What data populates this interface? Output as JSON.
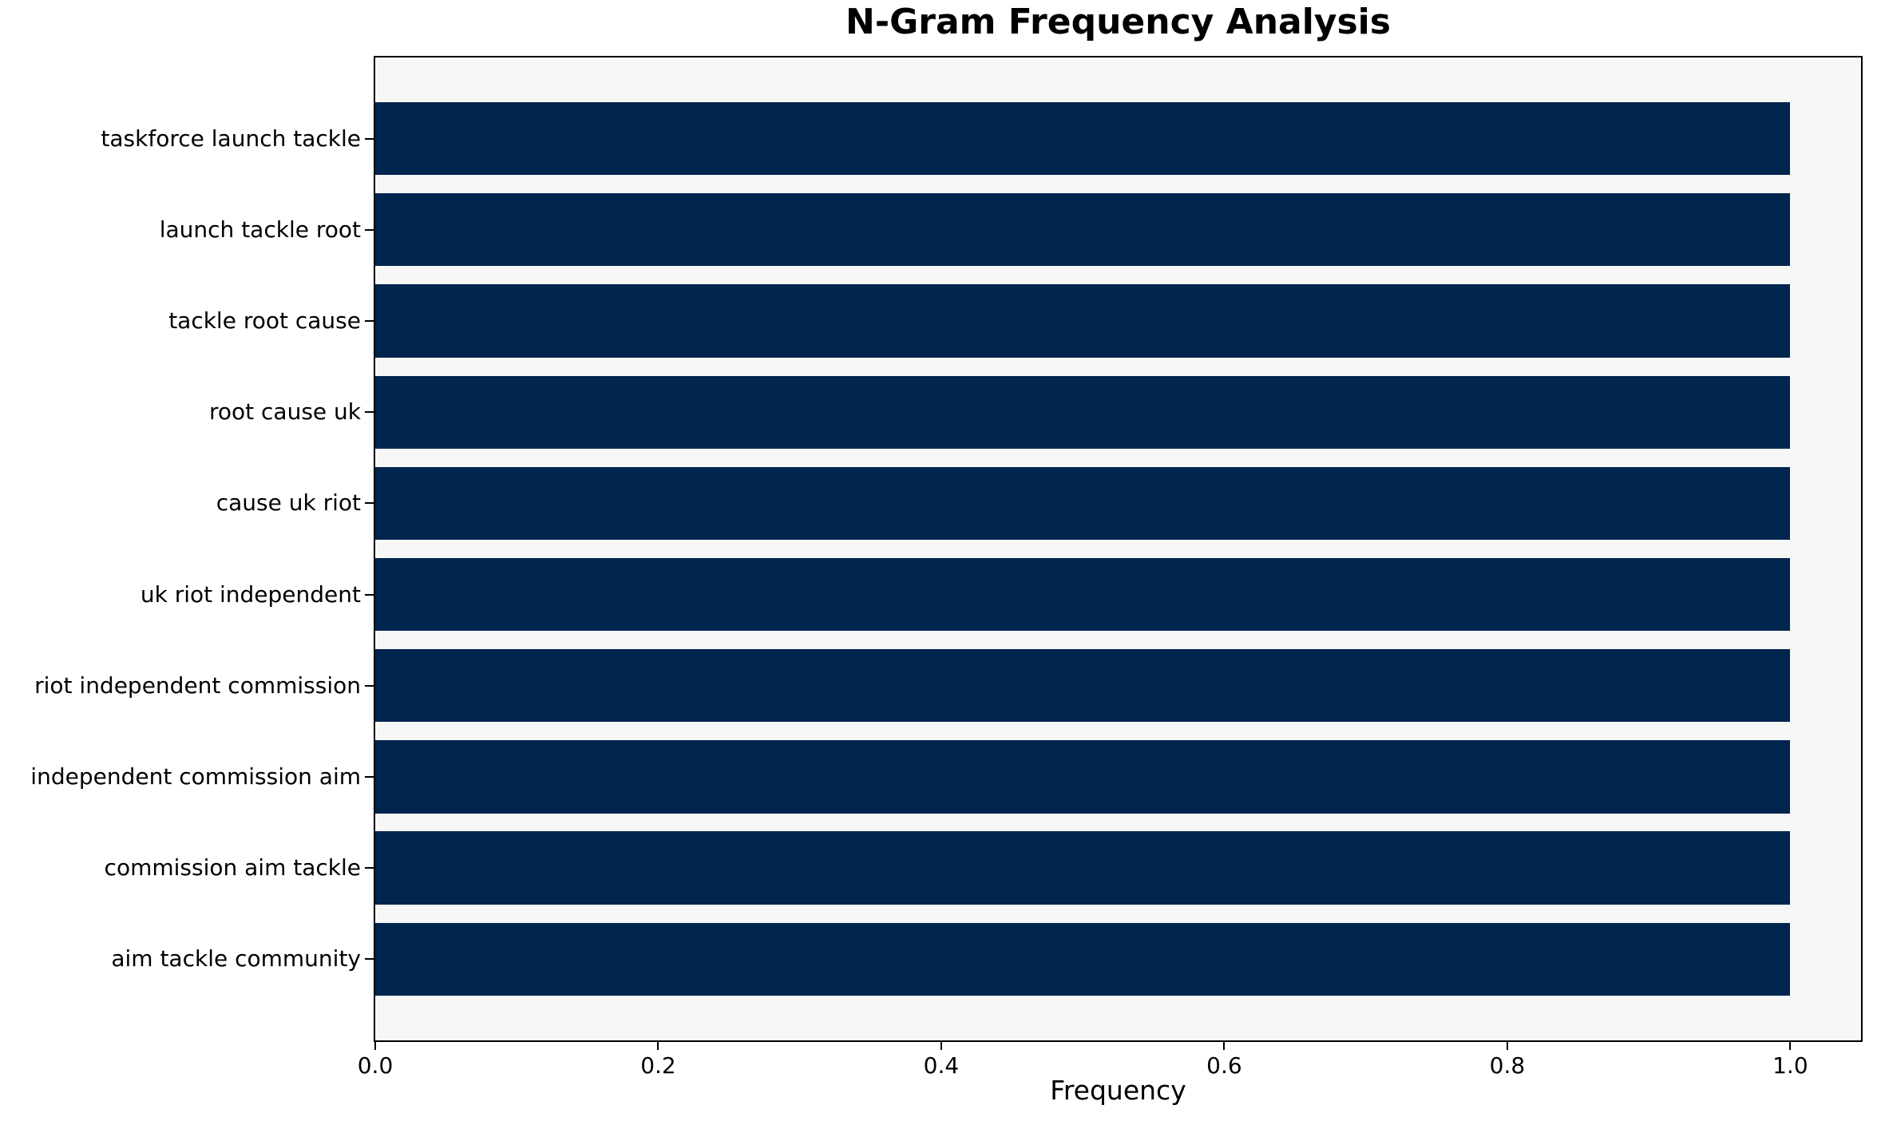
{
  "title": "N-Gram Frequency Analysis",
  "chart_data": {
    "type": "bar",
    "orientation": "horizontal",
    "title": "N-Gram Frequency Analysis",
    "xlabel": "Frequency",
    "ylabel": "",
    "categories": [
      "taskforce launch tackle",
      "launch tackle root",
      "tackle root cause",
      "root cause uk",
      "cause uk riot",
      "uk riot independent",
      "riot independent commission",
      "independent commission aim",
      "commission aim tackle",
      "aim tackle community"
    ],
    "values": [
      1.0,
      1.0,
      1.0,
      1.0,
      1.0,
      1.0,
      1.0,
      1.0,
      1.0,
      1.0
    ],
    "xlim": [
      0,
      1.05
    ],
    "xticks": [
      0.0,
      0.2,
      0.4,
      0.6,
      0.8,
      1.0
    ],
    "xtick_labels": [
      "0.0",
      "0.2",
      "0.4",
      "0.6",
      "0.8",
      "1.0"
    ],
    "grid": false,
    "legend": false,
    "bar_color": "#00254E",
    "plot_bg": "#F7F7F7",
    "fig_bg": "#FFFFFF",
    "spine_color": "#000000"
  }
}
